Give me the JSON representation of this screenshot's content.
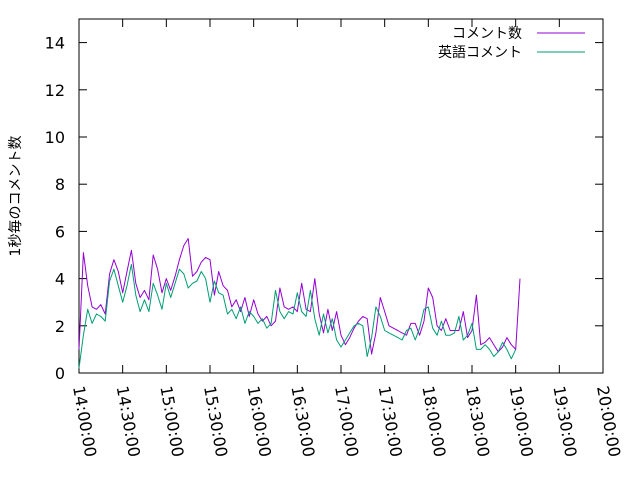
{
  "chart_data": {
    "type": "line",
    "ylabel": "1秒毎のコメント数",
    "xlabel": "",
    "ylim": [
      0,
      15
    ],
    "yticks": [
      0,
      2,
      4,
      6,
      8,
      10,
      12,
      14
    ],
    "xlim": [
      "14:00:00",
      "20:00:00"
    ],
    "xticks": [
      "14:00:00",
      "14:30:00",
      "15:00:00",
      "15:30:00",
      "16:00:00",
      "16:30:00",
      "17:00:00",
      "17:30:00",
      "18:00:00",
      "18:30:00",
      "19:00:00",
      "19:30:00",
      "20:00:00"
    ],
    "grid": false,
    "legend_position": "top-right",
    "series": [
      {
        "name": "コメント数",
        "color": "#9400d3",
        "points": [
          [
            "14:00:00",
            1.0
          ],
          [
            "14:03:00",
            5.1
          ],
          [
            "14:06:00",
            3.7
          ],
          [
            "14:09:00",
            2.8
          ],
          [
            "14:12:00",
            2.7
          ],
          [
            "14:15:00",
            2.9
          ],
          [
            "14:18:00",
            2.5
          ],
          [
            "14:21:00",
            4.2
          ],
          [
            "14:24:00",
            4.8
          ],
          [
            "14:27:00",
            4.3
          ],
          [
            "14:30:00",
            3.4
          ],
          [
            "14:33:00",
            4.3
          ],
          [
            "14:36:00",
            5.2
          ],
          [
            "14:39:00",
            3.8
          ],
          [
            "14:42:00",
            3.2
          ],
          [
            "14:45:00",
            3.5
          ],
          [
            "14:48:00",
            3.1
          ],
          [
            "14:51:00",
            5.0
          ],
          [
            "14:54:00",
            4.4
          ],
          [
            "14:57:00",
            3.4
          ],
          [
            "15:00:00",
            4.0
          ],
          [
            "15:03:00",
            3.5
          ],
          [
            "15:06:00",
            4.1
          ],
          [
            "15:09:00",
            4.8
          ],
          [
            "15:12:00",
            5.4
          ],
          [
            "15:15:00",
            5.7
          ],
          [
            "15:18:00",
            4.1
          ],
          [
            "15:21:00",
            4.3
          ],
          [
            "15:24:00",
            4.7
          ],
          [
            "15:27:00",
            4.9
          ],
          [
            "15:30:00",
            4.8
          ],
          [
            "15:33:00",
            3.3
          ],
          [
            "15:36:00",
            4.3
          ],
          [
            "15:39:00",
            3.7
          ],
          [
            "15:42:00",
            3.5
          ],
          [
            "15:45:00",
            2.8
          ],
          [
            "15:48:00",
            3.1
          ],
          [
            "15:51:00",
            2.6
          ],
          [
            "15:54:00",
            3.2
          ],
          [
            "15:57:00",
            2.4
          ],
          [
            "16:00:00",
            3.1
          ],
          [
            "16:03:00",
            2.5
          ],
          [
            "16:06:00",
            2.2
          ],
          [
            "16:09:00",
            2.4
          ],
          [
            "16:12:00",
            2.0
          ],
          [
            "16:15:00",
            2.2
          ],
          [
            "16:18:00",
            3.6
          ],
          [
            "16:21:00",
            2.8
          ],
          [
            "16:24:00",
            2.7
          ],
          [
            "16:27:00",
            2.8
          ],
          [
            "16:30:00",
            2.6
          ],
          [
            "16:33:00",
            3.8
          ],
          [
            "16:36:00",
            2.7
          ],
          [
            "16:39:00",
            2.6
          ],
          [
            "16:42:00",
            4.0
          ],
          [
            "16:45:00",
            2.5
          ],
          [
            "16:48:00",
            1.7
          ],
          [
            "16:51:00",
            2.7
          ],
          [
            "16:54:00",
            1.8
          ],
          [
            "16:57:00",
            2.6
          ],
          [
            "17:00:00",
            1.6
          ],
          [
            "17:03:00",
            1.2
          ],
          [
            "17:06:00",
            1.5
          ],
          [
            "17:09:00",
            1.9
          ],
          [
            "17:12:00",
            2.2
          ],
          [
            "17:15:00",
            2.4
          ],
          [
            "17:18:00",
            2.3
          ],
          [
            "17:21:00",
            0.8
          ],
          [
            "17:24:00",
            1.7
          ],
          [
            "17:27:00",
            3.2
          ],
          [
            "17:30:00",
            2.6
          ],
          [
            "17:33:00",
            2.0
          ],
          [
            "17:36:00",
            1.9
          ],
          [
            "17:39:00",
            1.8
          ],
          [
            "17:42:00",
            1.7
          ],
          [
            "17:45:00",
            1.6
          ],
          [
            "17:48:00",
            2.1
          ],
          [
            "17:51:00",
            2.1
          ],
          [
            "17:54:00",
            1.6
          ],
          [
            "17:57:00",
            2.2
          ],
          [
            "18:00:00",
            3.6
          ],
          [
            "18:03:00",
            3.2
          ],
          [
            "18:06:00",
            2.0
          ],
          [
            "18:09:00",
            1.8
          ],
          [
            "18:12:00",
            2.3
          ],
          [
            "18:15:00",
            1.8
          ],
          [
            "18:18:00",
            1.8
          ],
          [
            "18:21:00",
            1.8
          ],
          [
            "18:24:00",
            2.6
          ],
          [
            "18:27:00",
            1.5
          ],
          [
            "18:30:00",
            1.8
          ],
          [
            "18:33:00",
            3.3
          ],
          [
            "18:36:00",
            1.2
          ],
          [
            "18:39:00",
            1.3
          ],
          [
            "18:42:00",
            1.5
          ],
          [
            "18:45:00",
            1.2
          ],
          [
            "18:48:00",
            0.9
          ],
          [
            "18:51:00",
            1.1
          ],
          [
            "18:54:00",
            1.5
          ],
          [
            "18:57:00",
            1.2
          ],
          [
            "19:00:00",
            1.0
          ],
          [
            "19:03:00",
            4.0
          ]
        ]
      },
      {
        "name": "英語コメント",
        "color": "#009e73",
        "points": [
          [
            "14:00:00",
            0.2
          ],
          [
            "14:03:00",
            1.6
          ],
          [
            "14:06:00",
            2.7
          ],
          [
            "14:09:00",
            2.1
          ],
          [
            "14:12:00",
            2.5
          ],
          [
            "14:15:00",
            2.4
          ],
          [
            "14:18:00",
            2.2
          ],
          [
            "14:21:00",
            3.9
          ],
          [
            "14:24:00",
            4.4
          ],
          [
            "14:27:00",
            3.7
          ],
          [
            "14:30:00",
            3.0
          ],
          [
            "14:33:00",
            3.7
          ],
          [
            "14:36:00",
            4.6
          ],
          [
            "14:39:00",
            3.3
          ],
          [
            "14:42:00",
            2.6
          ],
          [
            "14:45:00",
            3.1
          ],
          [
            "14:48:00",
            2.6
          ],
          [
            "14:51:00",
            3.8
          ],
          [
            "14:54:00",
            3.3
          ],
          [
            "14:57:00",
            2.7
          ],
          [
            "15:00:00",
            3.8
          ],
          [
            "15:03:00",
            3.2
          ],
          [
            "15:06:00",
            3.8
          ],
          [
            "15:09:00",
            4.4
          ],
          [
            "15:12:00",
            4.2
          ],
          [
            "15:15:00",
            3.6
          ],
          [
            "15:18:00",
            3.8
          ],
          [
            "15:21:00",
            3.9
          ],
          [
            "15:24:00",
            4.3
          ],
          [
            "15:27:00",
            4.0
          ],
          [
            "15:30:00",
            3.0
          ],
          [
            "15:33:00",
            3.9
          ],
          [
            "15:36:00",
            3.4
          ],
          [
            "15:39:00",
            3.3
          ],
          [
            "15:42:00",
            2.5
          ],
          [
            "15:45:00",
            2.7
          ],
          [
            "15:48:00",
            2.3
          ],
          [
            "15:51:00",
            2.8
          ],
          [
            "15:54:00",
            2.1
          ],
          [
            "15:57:00",
            2.6
          ],
          [
            "16:00:00",
            2.4
          ],
          [
            "16:03:00",
            2.1
          ],
          [
            "16:06:00",
            2.3
          ],
          [
            "16:09:00",
            1.9
          ],
          [
            "16:12:00",
            2.1
          ],
          [
            "16:15:00",
            3.5
          ],
          [
            "16:18:00",
            2.6
          ],
          [
            "16:21:00",
            2.3
          ],
          [
            "16:24:00",
            2.6
          ],
          [
            "16:27:00",
            2.5
          ],
          [
            "16:30:00",
            3.4
          ],
          [
            "16:33:00",
            2.6
          ],
          [
            "16:36:00",
            2.4
          ],
          [
            "16:39:00",
            3.5
          ],
          [
            "16:42:00",
            2.3
          ],
          [
            "16:45:00",
            1.6
          ],
          [
            "16:48:00",
            2.5
          ],
          [
            "16:51:00",
            1.7
          ],
          [
            "16:54:00",
            2.3
          ],
          [
            "16:57:00",
            1.4
          ],
          [
            "17:00:00",
            1.1
          ],
          [
            "17:03:00",
            1.4
          ],
          [
            "17:06:00",
            1.7
          ],
          [
            "17:09:00",
            2.0
          ],
          [
            "17:12:00",
            2.1
          ],
          [
            "17:15:00",
            2.0
          ],
          [
            "17:18:00",
            0.7
          ],
          [
            "17:21:00",
            1.5
          ],
          [
            "17:24:00",
            2.8
          ],
          [
            "17:27:00",
            2.4
          ],
          [
            "17:30:00",
            1.8
          ],
          [
            "17:33:00",
            1.7
          ],
          [
            "17:36:00",
            1.6
          ],
          [
            "17:39:00",
            1.5
          ],
          [
            "17:42:00",
            1.4
          ],
          [
            "17:45:00",
            1.8
          ],
          [
            "17:48:00",
            1.9
          ],
          [
            "17:51:00",
            1.4
          ],
          [
            "17:54:00",
            1.9
          ],
          [
            "17:57:00",
            2.7
          ],
          [
            "18:00:00",
            2.8
          ],
          [
            "18:03:00",
            1.9
          ],
          [
            "18:06:00",
            1.6
          ],
          [
            "18:09:00",
            2.2
          ],
          [
            "18:12:00",
            1.6
          ],
          [
            "18:15:00",
            1.6
          ],
          [
            "18:18:00",
            1.7
          ],
          [
            "18:21:00",
            2.4
          ],
          [
            "18:24:00",
            1.4
          ],
          [
            "18:27:00",
            1.6
          ],
          [
            "18:30:00",
            2.1
          ],
          [
            "18:33:00",
            1.0
          ],
          [
            "18:36:00",
            1.0
          ],
          [
            "18:39:00",
            1.2
          ],
          [
            "18:42:00",
            1.0
          ],
          [
            "18:45:00",
            0.7
          ],
          [
            "18:48:00",
            0.9
          ],
          [
            "18:51:00",
            1.3
          ],
          [
            "18:54:00",
            1.0
          ],
          [
            "18:57:00",
            0.6
          ],
          [
            "19:00:00",
            1.0
          ]
        ]
      }
    ]
  }
}
